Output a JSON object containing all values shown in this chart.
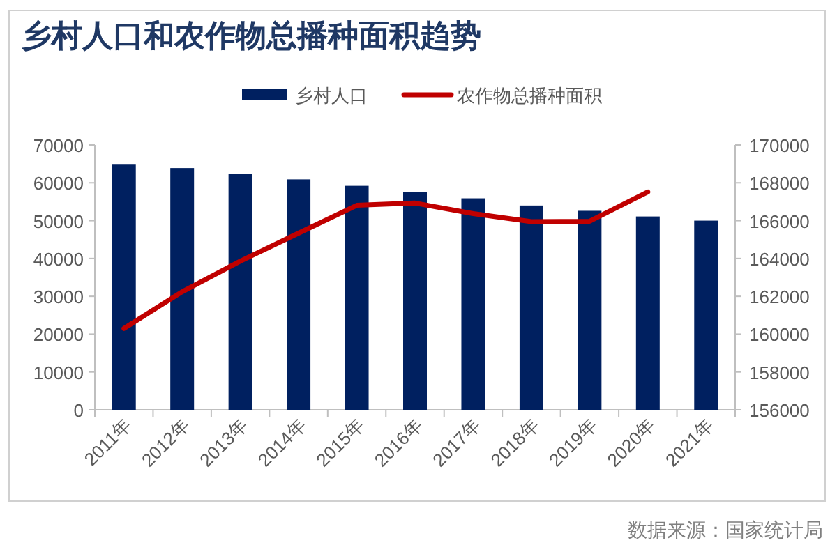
{
  "chart_data": {
    "type": "bar",
    "title": "乡村人口和农作物总播种面积趋势",
    "categories": [
      "2011年",
      "2012年",
      "2013年",
      "2014年",
      "2015年",
      "2016年",
      "2017年",
      "2018年",
      "2019年",
      "2020年",
      "2021年"
    ],
    "series": [
      {
        "name": "乡村人口",
        "color": "#002060",
        "values": [
          64800,
          63900,
          62400,
          60900,
          59200,
          57500,
          55900,
          54000,
          52600,
          51100,
          50000
        ]
      },
      {
        "name": "农作物总播种面积",
        "type": "line",
        "axis": "y2",
        "color": "#c00000",
        "values": [
          160300,
          162240,
          163860,
          165340,
          166810,
          166930,
          166370,
          165950,
          165970,
          167520,
          null
        ]
      }
    ],
    "ylim": [
      0,
      70000
    ],
    "yticks": [
      0,
      10000,
      20000,
      30000,
      40000,
      50000,
      60000,
      70000
    ],
    "y2lim": [
      156000,
      170000
    ],
    "y2ticks": [
      156000,
      158000,
      160000,
      162000,
      164000,
      166000,
      168000,
      170000
    ],
    "legend": "top",
    "annotations": [
      "数据来源：国家统计局"
    ]
  }
}
